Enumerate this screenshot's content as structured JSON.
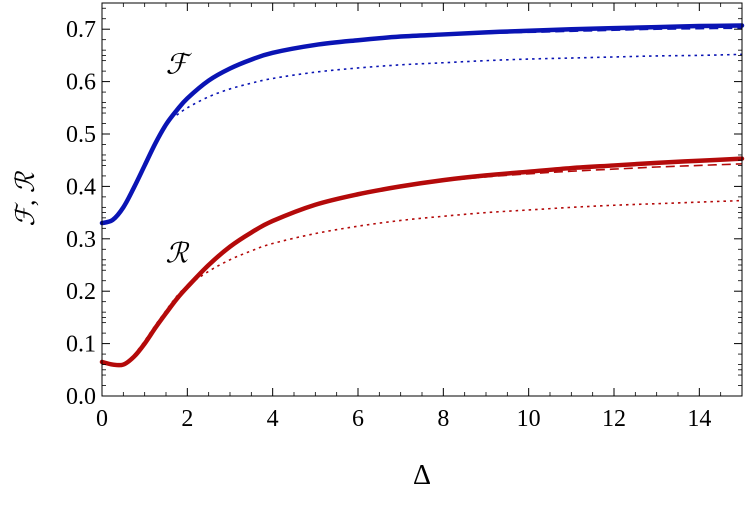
{
  "chart_data": {
    "type": "line",
    "xlabel": "Δ",
    "ylabel": "ℱ, ℛ",
    "xlim": [
      0,
      15
    ],
    "ylim": [
      0,
      0.75
    ],
    "x_ticks": [
      0,
      2,
      4,
      6,
      8,
      10,
      12,
      14
    ],
    "y_ticks": [
      0.0,
      0.1,
      0.2,
      0.3,
      0.4,
      0.5,
      0.6,
      0.7
    ],
    "x_tick_labels": [
      "0",
      "2",
      "4",
      "6",
      "8",
      "10",
      "12",
      "14"
    ],
    "y_tick_labels": [
      "0.0",
      "0.1",
      "0.2",
      "0.3",
      "0.4",
      "0.5",
      "0.6",
      "0.7"
    ],
    "grid": false,
    "series": [
      {
        "key": "F_solid",
        "style": "solid",
        "color": "#0a14b4",
        "x": [
          0,
          0.25,
          0.5,
          0.75,
          1.0,
          1.25,
          1.5,
          1.75,
          2.0,
          2.5,
          3.0,
          3.5,
          4.0,
          5.0,
          6.0,
          7.0,
          8.0,
          9.0,
          10.0,
          11.0,
          12.0,
          13.0,
          14.0,
          15.0
        ],
        "y": [
          0.33,
          0.336,
          0.36,
          0.398,
          0.44,
          0.482,
          0.518,
          0.545,
          0.568,
          0.602,
          0.625,
          0.642,
          0.655,
          0.67,
          0.679,
          0.686,
          0.69,
          0.694,
          0.697,
          0.7,
          0.702,
          0.704,
          0.706,
          0.707
        ]
      },
      {
        "key": "F_dashed",
        "style": "dashed",
        "color": "#0a14b4",
        "x": [
          8.0,
          9.0,
          10.0,
          11.0,
          12.0,
          13.0,
          14.0,
          15.0
        ],
        "y": [
          0.689,
          0.692,
          0.694,
          0.696,
          0.698,
          0.7,
          0.701,
          0.702
        ]
      },
      {
        "key": "F_dotted",
        "style": "dotted",
        "color": "#0a14b4",
        "x": [
          1.75,
          2.0,
          2.5,
          3.0,
          3.5,
          4.0,
          5.0,
          6.0,
          7.0,
          8.0,
          9.0,
          10.0,
          11.0,
          12.0,
          13.0,
          14.0,
          15.0
        ],
        "y": [
          0.536,
          0.55,
          0.571,
          0.586,
          0.597,
          0.606,
          0.618,
          0.626,
          0.632,
          0.636,
          0.64,
          0.643,
          0.645,
          0.647,
          0.649,
          0.65,
          0.652
        ]
      },
      {
        "key": "R_solid",
        "style": "solid",
        "color": "#b40a0a",
        "x": [
          0,
          0.25,
          0.5,
          0.75,
          1.0,
          1.25,
          1.5,
          1.75,
          2.0,
          2.5,
          3.0,
          3.5,
          4.0,
          5.0,
          6.0,
          7.0,
          8.0,
          9.0,
          10.0,
          11.0,
          12.0,
          13.0,
          14.0,
          15.0
        ],
        "y": [
          0.065,
          0.06,
          0.06,
          0.075,
          0.1,
          0.13,
          0.158,
          0.185,
          0.208,
          0.25,
          0.285,
          0.312,
          0.334,
          0.365,
          0.385,
          0.4,
          0.412,
          0.421,
          0.428,
          0.435,
          0.44,
          0.445,
          0.449,
          0.453
        ]
      },
      {
        "key": "R_dashed",
        "style": "dashed",
        "color": "#b40a0a",
        "x": [
          7.0,
          8.0,
          9.0,
          10.0,
          11.0,
          12.0,
          13.0,
          14.0,
          15.0
        ],
        "y": [
          0.399,
          0.41,
          0.418,
          0.424,
          0.429,
          0.433,
          0.437,
          0.44,
          0.443
        ]
      },
      {
        "key": "R_dotted",
        "style": "dotted",
        "color": "#b40a0a",
        "x": [
          0.75,
          1.0,
          1.25,
          1.5,
          1.75,
          2.0,
          2.5,
          3.0,
          3.5,
          4.0,
          5.0,
          6.0,
          7.0,
          8.0,
          9.0,
          10.0,
          11.0,
          12.0,
          13.0,
          14.0,
          15.0
        ],
        "y": [
          0.078,
          0.105,
          0.135,
          0.163,
          0.19,
          0.21,
          0.238,
          0.26,
          0.277,
          0.291,
          0.31,
          0.324,
          0.335,
          0.343,
          0.35,
          0.355,
          0.36,
          0.364,
          0.367,
          0.37,
          0.373
        ]
      }
    ],
    "annotations": [
      {
        "key": "F_label",
        "text": "ℱ",
        "x": 1.75,
        "y": 0.615
      },
      {
        "key": "R_label",
        "text": "ℛ",
        "x": 1.75,
        "y": 0.255
      }
    ]
  }
}
